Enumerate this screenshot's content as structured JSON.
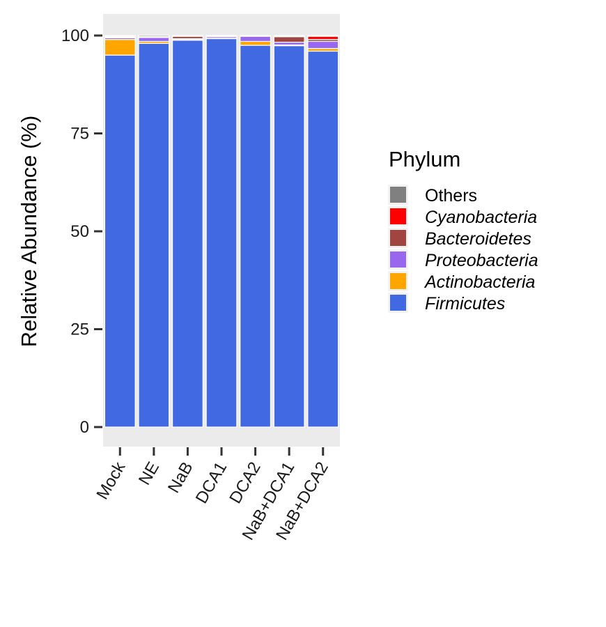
{
  "chart_data": {
    "type": "bar",
    "stacked": true,
    "title": "",
    "xlabel": "",
    "ylabel": "Relative Abundance (%)",
    "ylim": [
      0,
      105
    ],
    "yticks": [
      0,
      25,
      50,
      75,
      100
    ],
    "grid": false,
    "legend_position": "right",
    "legend_title": "Phylum",
    "categories": [
      "Mock",
      "NE",
      "NaB",
      "DCA1",
      "DCA2",
      "NaB+DCA1",
      "NaB+DCA2"
    ],
    "series": [
      {
        "name": "Firmicutes",
        "italic": true,
        "color": "#4169E1",
        "values": [
          95.0,
          98.0,
          98.8,
          99.2,
          97.5,
          97.4,
          96.0
        ]
      },
      {
        "name": "Actinobacteria",
        "italic": true,
        "color": "#FFA500",
        "values": [
          4.0,
          0.5,
          0.2,
          0.1,
          1.0,
          0.2,
          0.7
        ]
      },
      {
        "name": "Proteobacteria",
        "italic": true,
        "color": "#9966EE",
        "values": [
          0.4,
          1.0,
          0.2,
          0.4,
          1.3,
          0.7,
          1.8
        ]
      },
      {
        "name": "Bacteroidetes",
        "italic": true,
        "color": "#A0453F",
        "values": [
          0.2,
          0.2,
          0.6,
          0.1,
          0.0,
          1.4,
          0.5
        ]
      },
      {
        "name": "Cyanobacteria",
        "italic": true,
        "color": "#FF0000",
        "values": [
          0.2,
          0.0,
          0.0,
          0.0,
          0.0,
          0.1,
          0.8
        ]
      },
      {
        "name": "Others",
        "italic": false,
        "color": "#808080",
        "values": [
          0.2,
          0.3,
          0.2,
          0.2,
          0.2,
          0.2,
          0.2
        ]
      }
    ],
    "panel_background": "#EBEBEB",
    "bar_outline": "#FFFFFF"
  }
}
